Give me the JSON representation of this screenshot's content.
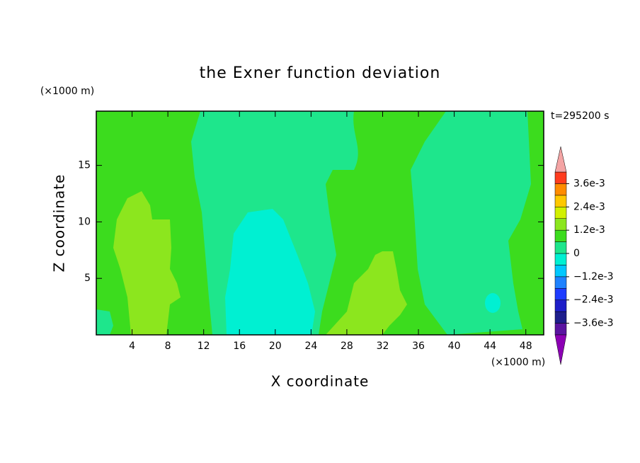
{
  "chart_data": {
    "type": "contour",
    "title": "the Exner function deviation",
    "xlabel": "X coordinate",
    "ylabel": "Z coordinate",
    "x_unit": "(×1000 m)",
    "y_unit": "(×1000 m)",
    "time_label": "t=295200 s",
    "xlim": [
      0,
      50
    ],
    "xticks": [
      4,
      8,
      12,
      16,
      20,
      24,
      28,
      32,
      36,
      40,
      44,
      48
    ],
    "ylim": [
      0,
      19.8
    ],
    "yticks": [
      5,
      10,
      15
    ],
    "colorbar": {
      "levels": [
        -0.0042,
        -0.0036,
        -0.003,
        -0.0024,
        -0.0018,
        -0.0012,
        -0.0006,
        0,
        0.0006,
        0.0012,
        0.0018,
        0.0024,
        0.003,
        0.0036,
        0.0042
      ],
      "colors": [
        "#5a14a0",
        "#1e1e8c",
        "#1e1ec8",
        "#1e3cff",
        "#1e82ff",
        "#00c8ff",
        "#00f0d2",
        "#1ee68c",
        "#3cdc1e",
        "#8ce61e",
        "#d2f000",
        "#ffc800",
        "#ff8c00",
        "#ff3c1e"
      ],
      "extend_colors": [
        "#8c00b4",
        "#f4a4a4"
      ],
      "ticks": [
        {
          "value": -0.0036,
          "label": "−3.6e-3"
        },
        {
          "value": -0.0024,
          "label": "−2.4e-3"
        },
        {
          "value": -0.0012,
          "label": "−1.2e-3"
        },
        0,
        {
          "value": 0.0012,
          "label": "1.2e-3"
        },
        {
          "value": 0.0024,
          "label": "2.4e-3"
        },
        {
          "value": 0.0036,
          "label": "3.6e-3"
        }
      ]
    }
  }
}
